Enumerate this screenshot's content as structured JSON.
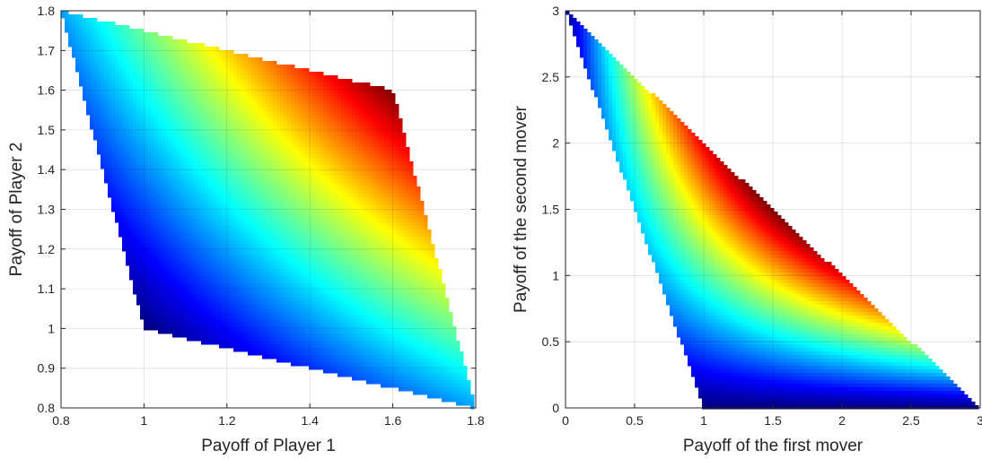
{
  "chart_data": [
    {
      "type": "heatmap",
      "title": "",
      "xlabel": "Payoff of Player 1",
      "ylabel": "Payoff of Player 2",
      "xlim": [
        0.8,
        1.8
      ],
      "ylim": [
        0.8,
        1.8
      ],
      "xticks": [
        "0.8",
        "1",
        "1.2",
        "1.4",
        "1.6",
        "1.8"
      ],
      "yticks": [
        "0.8",
        "0.9",
        "1",
        "1.1",
        "1.2",
        "1.3",
        "1.4",
        "1.5",
        "1.6",
        "1.7",
        "1.8"
      ],
      "grid": true,
      "colormap": "jet",
      "region_vertices": [
        [
          0.8,
          1.8
        ],
        [
          1.6,
          1.6
        ],
        [
          1.8,
          0.8
        ],
        [
          1.0,
          1.0
        ]
      ],
      "color_value": "product of payoffs",
      "color_range": [
        1.0,
        2.56
      ]
    },
    {
      "type": "heatmap",
      "title": "",
      "xlabel": "Payoff of the first mover",
      "ylabel": "Payoff of the second mover",
      "xlim": [
        0,
        3
      ],
      "ylim": [
        0,
        3
      ],
      "xticks": [
        "0",
        "0.5",
        "1",
        "1.5",
        "2",
        "2.5",
        "3"
      ],
      "yticks": [
        "0",
        "0.5",
        "1",
        "1.5",
        "2",
        "2.5",
        "3"
      ],
      "grid": true,
      "colormap": "jet",
      "region_vertices": [
        [
          0,
          3
        ],
        [
          3,
          0
        ],
        [
          1,
          0
        ]
      ],
      "color_value": "product of payoffs",
      "color_range": [
        0,
        2.25
      ]
    }
  ]
}
